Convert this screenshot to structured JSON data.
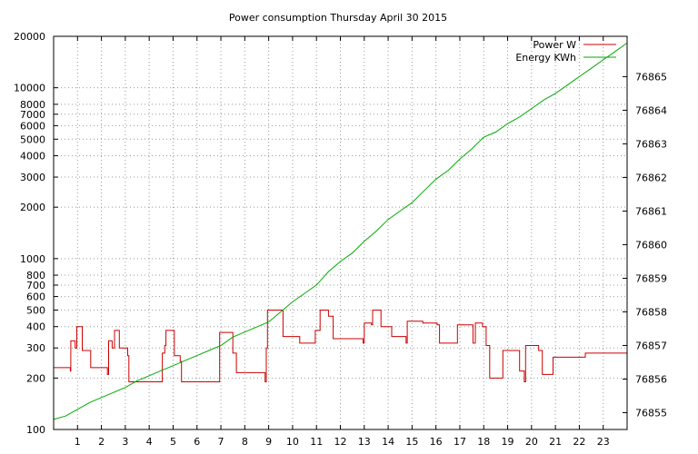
{
  "chart_data": {
    "type": "line",
    "title": "Power consumption Thursday April 30 2015",
    "xlabel": "",
    "ylabel": "",
    "y2label": "",
    "xlim": [
      0,
      24
    ],
    "x_ticks": [
      1,
      2,
      3,
      4,
      5,
      6,
      7,
      8,
      9,
      10,
      11,
      12,
      13,
      14,
      15,
      16,
      17,
      18,
      19,
      20,
      21,
      22,
      23
    ],
    "y_scale": "log",
    "ylim": [
      100,
      20000
    ],
    "y_ticks": [
      100,
      200,
      300,
      400,
      500,
      600,
      700,
      800,
      1000,
      2000,
      3000,
      4000,
      5000,
      6000,
      7000,
      8000,
      10000,
      20000
    ],
    "y2lim": [
      76854.5,
      76866.2
    ],
    "y2_ticks": [
      76855,
      76856,
      76857,
      76858,
      76859,
      76860,
      76861,
      76862,
      76863,
      76864,
      76865
    ],
    "grid": "vertical-and-horizontal-dashed",
    "legend_position": "top-right",
    "series": [
      {
        "name": "Power W",
        "axis": "left",
        "color": "#cc0000",
        "step": true,
        "points": [
          [
            0,
            230
          ],
          [
            0.7,
            220
          ],
          [
            0.72,
            330
          ],
          [
            0.9,
            300
          ],
          [
            0.97,
            400
          ],
          [
            1.2,
            290
          ],
          [
            1.55,
            230
          ],
          [
            2.25,
            210
          ],
          [
            2.3,
            330
          ],
          [
            2.45,
            300
          ],
          [
            2.55,
            380
          ],
          [
            2.75,
            300
          ],
          [
            3.1,
            270
          ],
          [
            3.15,
            190
          ],
          [
            4.55,
            280
          ],
          [
            4.65,
            310
          ],
          [
            4.7,
            380
          ],
          [
            5.05,
            270
          ],
          [
            5.3,
            250
          ],
          [
            5.35,
            190
          ],
          [
            6.95,
            370
          ],
          [
            7.5,
            280
          ],
          [
            7.65,
            215
          ],
          [
            8.85,
            190
          ],
          [
            8.9,
            300
          ],
          [
            8.95,
            500
          ],
          [
            9.6,
            350
          ],
          [
            10.3,
            320
          ],
          [
            10.95,
            380
          ],
          [
            11.15,
            500
          ],
          [
            11.5,
            460
          ],
          [
            11.7,
            340
          ],
          [
            12.95,
            320
          ],
          [
            13,
            420
          ],
          [
            13.3,
            410
          ],
          [
            13.35,
            500
          ],
          [
            13.7,
            400
          ],
          [
            14.15,
            350
          ],
          [
            14.75,
            320
          ],
          [
            14.8,
            430
          ],
          [
            15.45,
            420
          ],
          [
            16.05,
            410
          ],
          [
            16.15,
            320
          ],
          [
            16.9,
            410
          ],
          [
            17.55,
            320
          ],
          [
            17.65,
            420
          ],
          [
            17.95,
            400
          ],
          [
            18.1,
            310
          ],
          [
            18.25,
            200
          ],
          [
            18.75,
            200
          ],
          [
            18.8,
            290
          ],
          [
            19.45,
            290
          ],
          [
            19.5,
            220
          ],
          [
            19.7,
            190
          ],
          [
            19.75,
            310
          ],
          [
            20.3,
            290
          ],
          [
            20.45,
            210
          ],
          [
            20.9,
            265
          ],
          [
            22.25,
            280
          ],
          [
            24,
            280
          ]
        ]
      },
      {
        "name": "Energy KWh",
        "axis": "right",
        "color": "#00aa00",
        "step": false,
        "points": [
          [
            0,
            76854.8
          ],
          [
            0.5,
            76854.9
          ],
          [
            1,
            76855.1
          ],
          [
            1.5,
            76855.3
          ],
          [
            2,
            76855.45
          ],
          [
            2.5,
            76855.6
          ],
          [
            3,
            76855.75
          ],
          [
            3.5,
            76855.95
          ],
          [
            4,
            76856.1
          ],
          [
            4.5,
            76856.25
          ],
          [
            5,
            76856.4
          ],
          [
            5.5,
            76856.55
          ],
          [
            6,
            76856.7
          ],
          [
            6.5,
            76856.85
          ],
          [
            7,
            76857.0
          ],
          [
            7.5,
            76857.25
          ],
          [
            8,
            76857.4
          ],
          [
            8.5,
            76857.55
          ],
          [
            9,
            76857.7
          ],
          [
            9.5,
            76858.0
          ],
          [
            10,
            76858.3
          ],
          [
            10.5,
            76858.55
          ],
          [
            11,
            76858.8
          ],
          [
            11.5,
            76859.2
          ],
          [
            12,
            76859.5
          ],
          [
            12.5,
            76859.75
          ],
          [
            13,
            76860.1
          ],
          [
            13.5,
            76860.4
          ],
          [
            14,
            76860.75
          ],
          [
            14.5,
            76861.0
          ],
          [
            15,
            76861.25
          ],
          [
            15.5,
            76861.6
          ],
          [
            16,
            76861.95
          ],
          [
            16.5,
            76862.2
          ],
          [
            17,
            76862.55
          ],
          [
            17.5,
            76862.85
          ],
          [
            18,
            76863.2
          ],
          [
            18.5,
            76863.35
          ],
          [
            19,
            76863.6
          ],
          [
            19.5,
            76863.8
          ],
          [
            20,
            76864.05
          ],
          [
            20.5,
            76864.3
          ],
          [
            21,
            76864.5
          ],
          [
            21.5,
            76864.75
          ],
          [
            22,
            76865.0
          ],
          [
            22.5,
            76865.25
          ],
          [
            23,
            76865.5
          ],
          [
            23.5,
            76865.75
          ],
          [
            24,
            76866.0
          ]
        ]
      }
    ]
  }
}
